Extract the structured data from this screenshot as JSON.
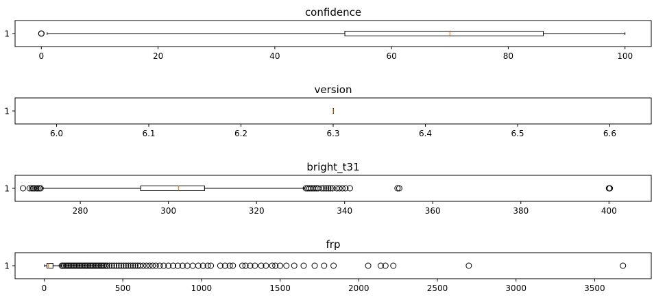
{
  "chart_data": [
    {
      "type": "boxplot",
      "orientation": "horizontal",
      "title": "confidence",
      "category_labels": [
        "1"
      ],
      "xlim": [
        -4.5,
        104.5
      ],
      "xticks": [
        0,
        20,
        40,
        60,
        80,
        100
      ],
      "box": {
        "whisker_low": 1,
        "q1": 52,
        "median": 70,
        "q3": 86,
        "whisker_high": 100
      },
      "outliers": [
        0,
        0,
        0,
        0
      ]
    },
    {
      "type": "boxplot",
      "orientation": "horizontal",
      "title": "version",
      "category_labels": [
        "1"
      ],
      "xlim": [
        5.955,
        6.645
      ],
      "xticks": [
        6.0,
        6.1,
        6.2,
        6.3,
        6.4,
        6.5,
        6.6
      ],
      "tick_decimals": 1,
      "box": {
        "whisker_low": 6.3,
        "q1": 6.3,
        "median": 6.3,
        "q3": 6.3,
        "whisker_high": 6.3
      },
      "outliers": []
    },
    {
      "type": "boxplot",
      "orientation": "horizontal",
      "title": "bright_t31",
      "category_labels": [
        "1"
      ],
      "xlim": [
        265.2,
        409.6
      ],
      "xticks": [
        280,
        300,
        320,
        340,
        360,
        380,
        400
      ],
      "box": {
        "whisker_low": 271.5,
        "q1": 293.7,
        "median": 302.3,
        "q3": 308.2,
        "whisker_high": 330.8
      },
      "outliers": [
        267,
        268.5,
        269,
        269.3,
        269.6,
        270,
        270.3,
        270.7,
        271,
        331.2,
        331.6,
        332,
        332.4,
        332.8,
        333.2,
        333.6,
        334,
        334.8,
        335.3,
        335.8,
        336.3,
        336.8,
        337.3,
        338.2,
        338.8,
        339.5,
        340.2,
        341.2,
        352,
        352.4,
        400,
        400.1,
        400.2
      ]
    },
    {
      "type": "boxplot",
      "orientation": "horizontal",
      "title": "frp",
      "category_labels": [
        "1"
      ],
      "xlim": [
        -185,
        3860
      ],
      "xticks": [
        0,
        500,
        1000,
        1500,
        2000,
        2500,
        3000,
        3500
      ],
      "box": {
        "whisker_low": 2,
        "q1": 18,
        "median": 27,
        "q3": 56,
        "whisker_high": 109
      },
      "outliers": [
        112,
        120,
        130,
        140,
        150,
        160,
        170,
        180,
        190,
        200,
        210,
        220,
        230,
        240,
        250,
        260,
        270,
        280,
        290,
        300,
        310,
        320,
        330,
        340,
        350,
        360,
        370,
        380,
        390,
        400,
        415,
        430,
        445,
        460,
        475,
        490,
        505,
        520,
        535,
        550,
        565,
        580,
        595,
        610,
        630,
        650,
        670,
        690,
        710,
        735,
        760,
        790,
        820,
        850,
        880,
        910,
        945,
        980,
        1010,
        1040,
        1060,
        1120,
        1150,
        1180,
        1200,
        1260,
        1280,
        1310,
        1340,
        1380,
        1410,
        1450,
        1470,
        1500,
        1540,
        1590,
        1650,
        1720,
        1780,
        1840,
        2060,
        2140,
        2170,
        2220,
        2700,
        3680
      ]
    }
  ]
}
